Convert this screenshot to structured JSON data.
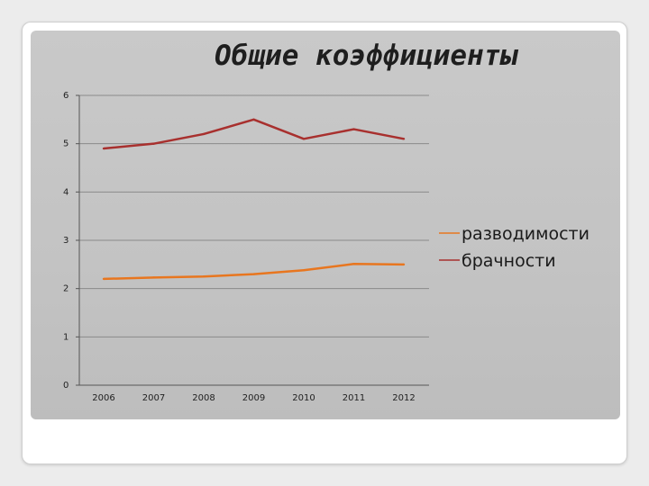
{
  "slide": {
    "title": "Общие коэффициенты"
  },
  "colors": {
    "panel": "#c6c6c6",
    "grid": "#8a8a8a",
    "axis": "#555555",
    "divorce": "#e8761f",
    "marriage": "#a8302e"
  },
  "chart_data": {
    "type": "line",
    "title": "Общие коэффициенты",
    "xlabel": "",
    "ylabel": "",
    "x": [
      "2006",
      "2007",
      "2008",
      "2009",
      "2010",
      "2011",
      "2012"
    ],
    "ylim": [
      0,
      6
    ],
    "yticks": [
      "0",
      "1",
      "2",
      "3",
      "4",
      "5",
      "6"
    ],
    "grid": true,
    "legend_position": "right",
    "series": [
      {
        "name": "разводимости",
        "color": "#e8761f",
        "values": [
          2.2,
          2.23,
          2.25,
          2.3,
          2.38,
          2.51,
          2.5
        ]
      },
      {
        "name": "брачности",
        "color": "#a8302e",
        "values": [
          4.9,
          5.0,
          5.2,
          5.5,
          5.1,
          5.3,
          5.1
        ]
      }
    ]
  }
}
